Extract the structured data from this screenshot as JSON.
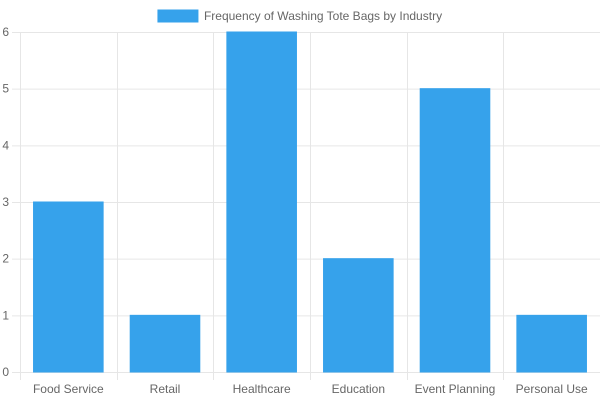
{
  "chart_data": {
    "type": "bar",
    "categories": [
      "Food Service",
      "Retail",
      "Healthcare",
      "Education",
      "Event Planning",
      "Personal Use"
    ],
    "series": [
      {
        "name": "Frequency of Washing Tote Bags by Industry",
        "values": [
          3,
          1,
          6,
          2,
          5,
          1
        ]
      }
    ],
    "yticks": [
      0,
      1,
      2,
      3,
      4,
      5,
      6
    ],
    "ylim": [
      0,
      6
    ],
    "grid": true,
    "legend_position": "top",
    "colors": {
      "bar_fill": "#36a2eb",
      "bar_border": "#36a2eb",
      "grid": "#e6e6e6",
      "tick_text": "#666666"
    }
  }
}
